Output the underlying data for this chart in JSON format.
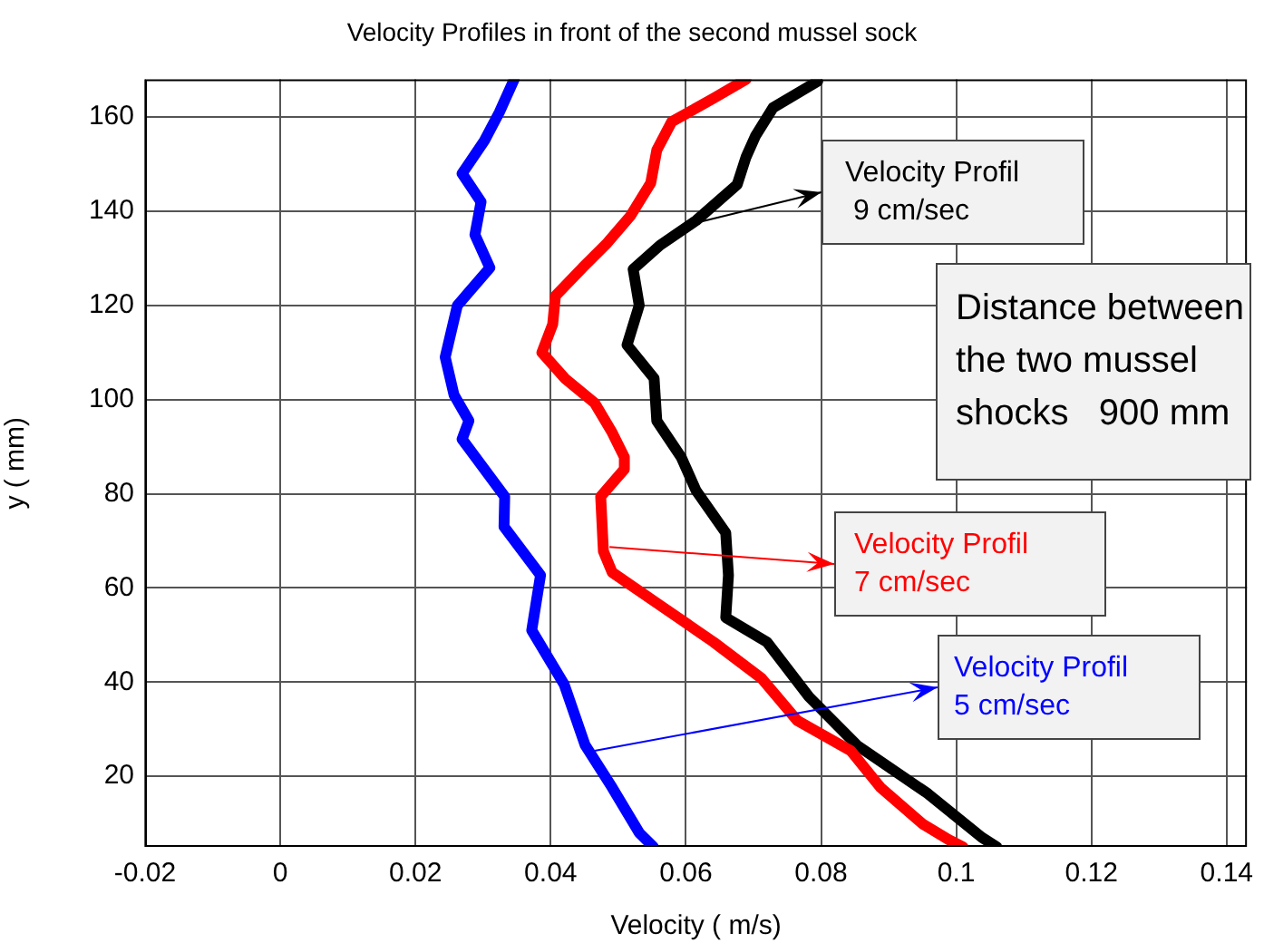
{
  "chart_data": {
    "type": "line",
    "title": "Velocity Profiles in front of the second mussel sock",
    "xlabel": "Velocity ( m/s)",
    "ylabel": "y ( mm)",
    "xlim": [
      -0.02,
      0.143
    ],
    "xticks": [
      -0.02,
      0,
      0.02,
      0.04,
      0.06,
      0.08,
      0.1,
      0.12,
      0.14
    ],
    "ylim": [
      5,
      168
    ],
    "yticks": [
      20,
      40,
      60,
      80,
      100,
      120,
      140,
      160
    ],
    "grid": true,
    "legend": false,
    "marker": "none",
    "line_style": "solid",
    "series": [
      {
        "color": "#0000ff",
        "x": [
          0.0346,
          0.0324,
          0.0302,
          0.0269,
          0.0297,
          0.0288,
          0.031,
          0.0262,
          0.0244,
          0.0257,
          0.0279,
          0.0269,
          0.0332,
          0.0331,
          0.0385,
          0.0372,
          0.042,
          0.0451,
          0.0491,
          0.0531,
          0.0552
        ],
        "values": [
          168,
          161,
          155,
          148,
          142,
          135,
          128,
          120,
          109,
          101,
          95.5,
          91.6,
          79.4,
          73,
          62.7,
          51,
          39.5,
          26.6,
          17.6,
          8,
          5
        ]
      },
      {
        "color": "#ff0000",
        "x": [
          0.0689,
          0.0641,
          0.0579,
          0.0557,
          0.0548,
          0.0518,
          0.0482,
          0.0447,
          0.0407,
          0.0403,
          0.0387,
          0.0421,
          0.0465,
          0.0491,
          0.0509,
          0.0509,
          0.0474,
          0.0478,
          0.0491,
          0.0562,
          0.0641,
          0.0712,
          0.0765,
          0.0844,
          0.0888,
          0.095,
          0.0989,
          0.101
        ],
        "values": [
          168,
          164,
          159,
          153,
          146,
          139,
          133,
          128,
          122,
          116,
          110,
          104.5,
          99.3,
          93,
          87.8,
          85.2,
          79.4,
          67.8,
          63.3,
          56.3,
          48.5,
          40.8,
          31.8,
          25.4,
          17.6,
          9.9,
          6.5,
          5
        ]
      },
      {
        "color": "#000000",
        "x": [
          0.0795,
          0.0729,
          0.0703,
          0.0689,
          0.0676,
          0.0615,
          0.0562,
          0.0522,
          0.0531,
          0.0513,
          0.0553,
          0.0557,
          0.0593,
          0.0615,
          0.0659,
          0.0663,
          0.0659,
          0.072,
          0.0782,
          0.0853,
          0.0958,
          0.1038,
          0.106
        ],
        "values": [
          167.6,
          162,
          156,
          151.5,
          145.7,
          138,
          132.8,
          127.7,
          120,
          111.6,
          104.5,
          95.5,
          87.8,
          80.7,
          71.7,
          62.7,
          53.7,
          48.5,
          36.9,
          26.6,
          16.3,
          7,
          5
        ]
      }
    ],
    "annotations": [
      {
        "text": "Velocity Profil\n 9 cm/sec",
        "x": 0.0622,
        "y": 137.8
      },
      "Distance between\nthe two mussel\nshocks   900 mm",
      {
        "text": "Velocity Profil\n7 cm/sec",
        "x": 0.0487,
        "y": 68.7
      },
      {
        "text": "Velocity Profil\n5 cm/sec",
        "x": 0.0465,
        "y": 25.4
      }
    ]
  }
}
